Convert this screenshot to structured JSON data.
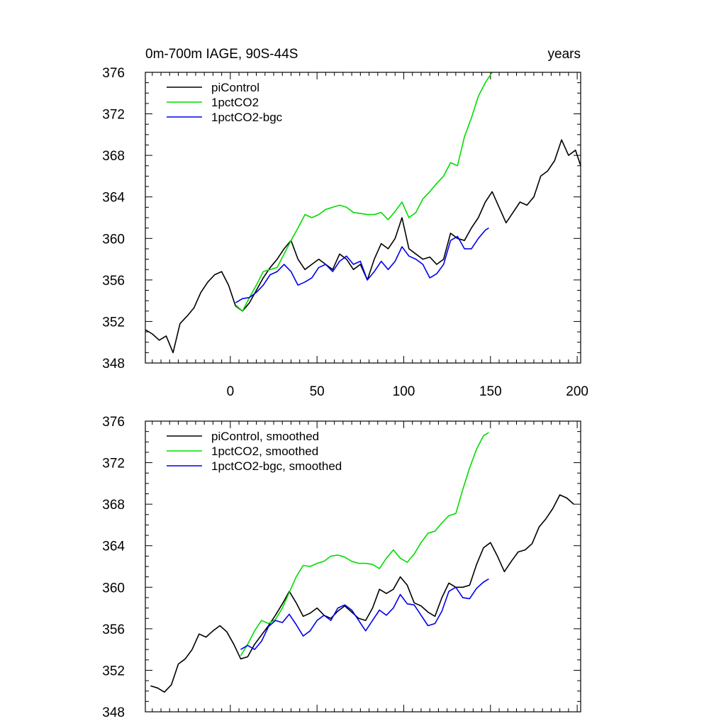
{
  "chart_data": [
    {
      "type": "line",
      "title": "0m-700m IAGE, 90S-44S",
      "units_label": "years",
      "xlim": [
        -49,
        202
      ],
      "ylim": [
        348,
        376
      ],
      "xticks": [
        0,
        50,
        100,
        150,
        200
      ],
      "xtick_labels": [
        "0",
        "50",
        "100",
        "150",
        "200"
      ],
      "yticks": [
        348,
        352,
        356,
        360,
        364,
        368,
        372,
        376
      ],
      "ytick_labels": [
        "348",
        "352",
        "356",
        "360",
        "364",
        "368",
        "372",
        "376"
      ],
      "legend_position": "top-left",
      "series": [
        {
          "name": "piControl",
          "color": "#000000",
          "x": [
            -49,
            -45,
            -41,
            -37,
            -33,
            -29,
            -25,
            -21,
            -17,
            -13,
            -9,
            -5,
            -1,
            3,
            7,
            11,
            15,
            19,
            23,
            27,
            31,
            35,
            39,
            43,
            47,
            51,
            55,
            59,
            63,
            67,
            71,
            75,
            79,
            83,
            87,
            91,
            95,
            99,
            103,
            107,
            111,
            115,
            119,
            123,
            127,
            131,
            135,
            139,
            143,
            147,
            151,
            155,
            159,
            163,
            167,
            171,
            175,
            179,
            183,
            187,
            191,
            195,
            199,
            202
          ],
          "values": [
            351.2,
            350.8,
            350.2,
            350.6,
            349.0,
            351.8,
            352.5,
            353.3,
            354.8,
            355.8,
            356.5,
            356.8,
            355.5,
            353.5,
            353.0,
            353.8,
            355.0,
            356.2,
            357.2,
            358.0,
            359.0,
            359.8,
            358.0,
            357.0,
            357.5,
            358.0,
            357.5,
            357.0,
            358.5,
            358.0,
            357.0,
            357.5,
            356.0,
            358.0,
            359.5,
            359.0,
            360.0,
            362.0,
            359.0,
            358.5,
            358.0,
            358.2,
            357.5,
            358.0,
            360.5,
            360.0,
            359.8,
            361.0,
            362.0,
            363.5,
            364.5,
            363.0,
            361.5,
            362.5,
            363.5,
            363.2,
            364.0,
            366.0,
            366.5,
            367.5,
            369.5,
            368.0,
            368.5,
            367.0
          ]
        },
        {
          "name": "1pctCO2",
          "color": "#00dd00",
          "x": [
            3,
            7,
            11,
            15,
            19,
            23,
            27,
            31,
            35,
            39,
            43,
            47,
            51,
            55,
            59,
            63,
            67,
            71,
            75,
            79,
            83,
            87,
            91,
            95,
            99,
            103,
            107,
            111,
            115,
            119,
            123,
            127,
            131,
            135,
            139,
            143,
            147,
            151
          ],
          "values": [
            353.6,
            353.0,
            354.3,
            355.5,
            356.8,
            357.0,
            357.2,
            358.5,
            359.8,
            361.0,
            362.3,
            362.0,
            362.3,
            362.8,
            363.0,
            363.2,
            363.0,
            362.5,
            362.4,
            362.3,
            362.3,
            362.5,
            361.8,
            362.6,
            363.5,
            362.0,
            362.5,
            363.8,
            364.5,
            365.3,
            366.0,
            367.3,
            367.0,
            369.8,
            371.6,
            373.7,
            375.0,
            376.0
          ]
        },
        {
          "name": "1pctCO2-bgc",
          "color": "#0000ee",
          "x": [
            3,
            7,
            11,
            15,
            19,
            23,
            27,
            31,
            35,
            39,
            43,
            47,
            51,
            55,
            59,
            63,
            67,
            71,
            75,
            79,
            83,
            87,
            91,
            95,
            99,
            103,
            107,
            111,
            115,
            119,
            123,
            127,
            131,
            135,
            139,
            143,
            147,
            149
          ],
          "values": [
            353.8,
            354.2,
            354.3,
            354.8,
            355.5,
            356.5,
            356.8,
            357.5,
            356.8,
            355.5,
            355.8,
            356.2,
            357.2,
            357.5,
            356.8,
            357.8,
            358.3,
            357.5,
            357.8,
            356.0,
            356.8,
            357.8,
            357.0,
            357.8,
            359.2,
            358.3,
            358.0,
            357.5,
            356.2,
            356.6,
            357.5,
            359.8,
            360.2,
            359.0,
            359.0,
            360.0,
            360.8,
            361.0
          ]
        }
      ]
    },
    {
      "type": "line",
      "title": "",
      "xlim": [
        -49,
        202
      ],
      "ylim": [
        348,
        376
      ],
      "xticks": [
        0,
        50,
        100,
        150,
        200
      ],
      "yticks": [
        348,
        352,
        356,
        360,
        364,
        368,
        372,
        376
      ],
      "ytick_labels": [
        "348",
        "352",
        "356",
        "360",
        "364",
        "368",
        "372",
        "376"
      ],
      "legend_position": "top-left",
      "series": [
        {
          "name": "piControl, smoothed",
          "color": "#000000",
          "x": [
            -46,
            -42,
            -38,
            -34,
            -30,
            -26,
            -22,
            -18,
            -14,
            -10,
            -6,
            -2,
            2,
            6,
            10,
            14,
            18,
            22,
            26,
            30,
            34,
            38,
            42,
            46,
            50,
            54,
            58,
            62,
            66,
            70,
            74,
            78,
            82,
            86,
            90,
            94,
            98,
            102,
            106,
            110,
            114,
            118,
            122,
            126,
            130,
            134,
            138,
            142,
            146,
            150,
            154,
            158,
            162,
            166,
            170,
            174,
            178,
            182,
            186,
            190,
            194,
            198
          ],
          "values": [
            350.5,
            350.3,
            349.9,
            350.6,
            352.6,
            353.1,
            354.0,
            355.5,
            355.2,
            355.8,
            356.3,
            355.7,
            354.5,
            353.1,
            353.3,
            354.5,
            355.4,
            356.3,
            357.3,
            358.4,
            359.6,
            358.5,
            357.2,
            357.5,
            358.0,
            357.3,
            357.0,
            357.7,
            358.2,
            357.6,
            357.0,
            356.8,
            358.0,
            359.8,
            359.4,
            359.8,
            361.0,
            360.2,
            358.5,
            358.2,
            357.6,
            357.2,
            359.0,
            360.4,
            360.0,
            360.0,
            360.2,
            362.2,
            363.8,
            364.3,
            363.0,
            361.5,
            362.5,
            363.4,
            363.6,
            364.2,
            365.8,
            366.6,
            367.6,
            368.9,
            368.6,
            368.0
          ]
        },
        {
          "name": "1pctCO2, smoothed",
          "color": "#00dd00",
          "x": [
            6,
            10,
            14,
            18,
            22,
            26,
            30,
            34,
            38,
            42,
            46,
            50,
            54,
            58,
            62,
            66,
            70,
            74,
            78,
            82,
            86,
            90,
            94,
            98,
            102,
            106,
            110,
            114,
            118,
            122,
            126,
            130,
            134,
            138,
            142,
            146,
            149
          ],
          "values": [
            353.4,
            354.5,
            355.8,
            356.8,
            356.5,
            356.9,
            358.0,
            359.5,
            361.0,
            362.1,
            362.0,
            362.3,
            362.5,
            363.0,
            363.1,
            362.9,
            362.5,
            362.3,
            362.3,
            362.2,
            361.8,
            362.8,
            363.6,
            362.8,
            362.4,
            363.2,
            364.3,
            365.2,
            365.4,
            366.2,
            366.9,
            367.1,
            369.4,
            371.5,
            373.3,
            374.6,
            374.9
          ]
        },
        {
          "name": "1pctCO2-bgc, smoothed",
          "color": "#0000ee",
          "x": [
            6,
            10,
            14,
            18,
            22,
            26,
            30,
            34,
            38,
            42,
            46,
            50,
            54,
            58,
            62,
            66,
            70,
            74,
            78,
            82,
            86,
            90,
            94,
            98,
            102,
            106,
            110,
            114,
            118,
            122,
            126,
            130,
            134,
            138,
            142,
            146,
            149
          ],
          "values": [
            354.0,
            354.4,
            354.0,
            354.8,
            356.2,
            356.8,
            356.6,
            357.4,
            356.4,
            355.3,
            355.8,
            356.8,
            357.3,
            356.8,
            358.0,
            358.3,
            357.8,
            356.8,
            355.8,
            356.8,
            357.8,
            357.3,
            358.0,
            359.3,
            358.4,
            358.3,
            357.3,
            356.3,
            356.5,
            357.7,
            359.6,
            360.0,
            359.0,
            358.9,
            359.9,
            360.5,
            360.8
          ]
        }
      ]
    }
  ]
}
